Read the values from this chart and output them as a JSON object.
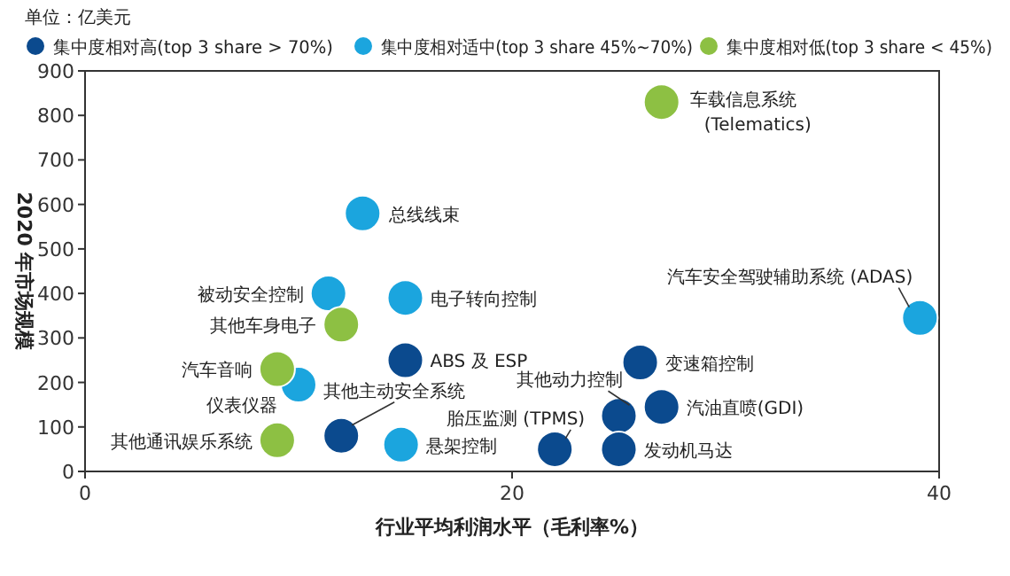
{
  "chart_data": {
    "type": "scatter",
    "xlabel": "行业平均利润水平（毛利率%）",
    "ylabel": "2020 年市场规模",
    "xlim": [
      0,
      40
    ],
    "xticks": [
      0,
      20,
      40
    ],
    "ylim": [
      0,
      900
    ],
    "yticks": [
      0,
      100,
      200,
      300,
      400,
      500,
      600,
      700,
      800,
      900
    ],
    "grid": false,
    "legend": "top",
    "marker": "circle",
    "series": [
      {
        "name": "集中度相对高(top 3 share > 70%)",
        "color": "#0b4a8e",
        "x": [
          15,
          12,
          26,
          25,
          27,
          22,
          25
        ],
        "values": [
          250,
          80,
          245,
          125,
          145,
          50,
          50
        ]
      },
      {
        "name": "集中度相对适中(top 3 share 45%~70%)",
        "color": "#1ba5de",
        "x": [
          13,
          11.4,
          15,
          10,
          14.8,
          39.1
        ],
        "values": [
          580,
          400,
          390,
          195,
          60,
          345
        ]
      },
      {
        "name": "集中度相对低(top 3 share < 45%)",
        "color": "#8dc043",
        "x": [
          27,
          12,
          9,
          9
        ],
        "values": [
          830,
          330,
          230,
          70
        ]
      }
    ],
    "annotations": [
      {
        "text": "车载信息系统 (Telematics)",
        "x": 27,
        "y": 830
      },
      {
        "text": "总线线束",
        "x": 13,
        "y": 580
      },
      {
        "text": "被动安全控制",
        "x": 11.4,
        "y": 400
      },
      {
        "text": "电子转向控制",
        "x": 15,
        "y": 390
      },
      {
        "text": "其他车身电子",
        "x": 12,
        "y": 330
      },
      {
        "text": "ABS 及 ESP",
        "x": 15,
        "y": 250
      },
      {
        "text": "汽车音响",
        "x": 9,
        "y": 230
      },
      {
        "text": "仪表仪器",
        "x": 10,
        "y": 195
      },
      {
        "text": "其他主动安全系统",
        "x": 12,
        "y": 80
      },
      {
        "text": "悬架控制",
        "x": 14.8,
        "y": 60
      },
      {
        "text": "其他通讯娱乐系统",
        "x": 9,
        "y": 70
      },
      {
        "text": "汽车安全驾驶辅助系统 (ADAS)",
        "x": 39.1,
        "y": 345
      },
      {
        "text": "变速箱控制",
        "x": 26,
        "y": 245
      },
      {
        "text": "其他动力控制",
        "x": 25,
        "y": 125
      },
      {
        "text": "汽油直喷(GDI)",
        "x": 27,
        "y": 145
      },
      {
        "text": "胎压监测 (TPMS)",
        "x": 22,
        "y": 50
      },
      {
        "text": "发动机马达",
        "x": 25,
        "y": 50
      },
      "单位：亿美元"
    ]
  }
}
